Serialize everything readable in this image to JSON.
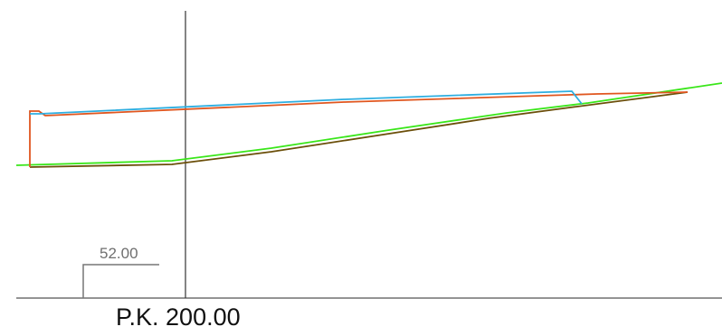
{
  "drawing": {
    "datum_elevation": "52.00",
    "station_label": "P.K. 200.00",
    "colors": {
      "ground_line": "#39e619",
      "subgrade_line": "#6b4f0a",
      "design_line": "#e0561f",
      "top_line": "#2eaee0",
      "axis_line": "#333333",
      "datum_line": "#777777",
      "label_text": "#111111"
    }
  }
}
